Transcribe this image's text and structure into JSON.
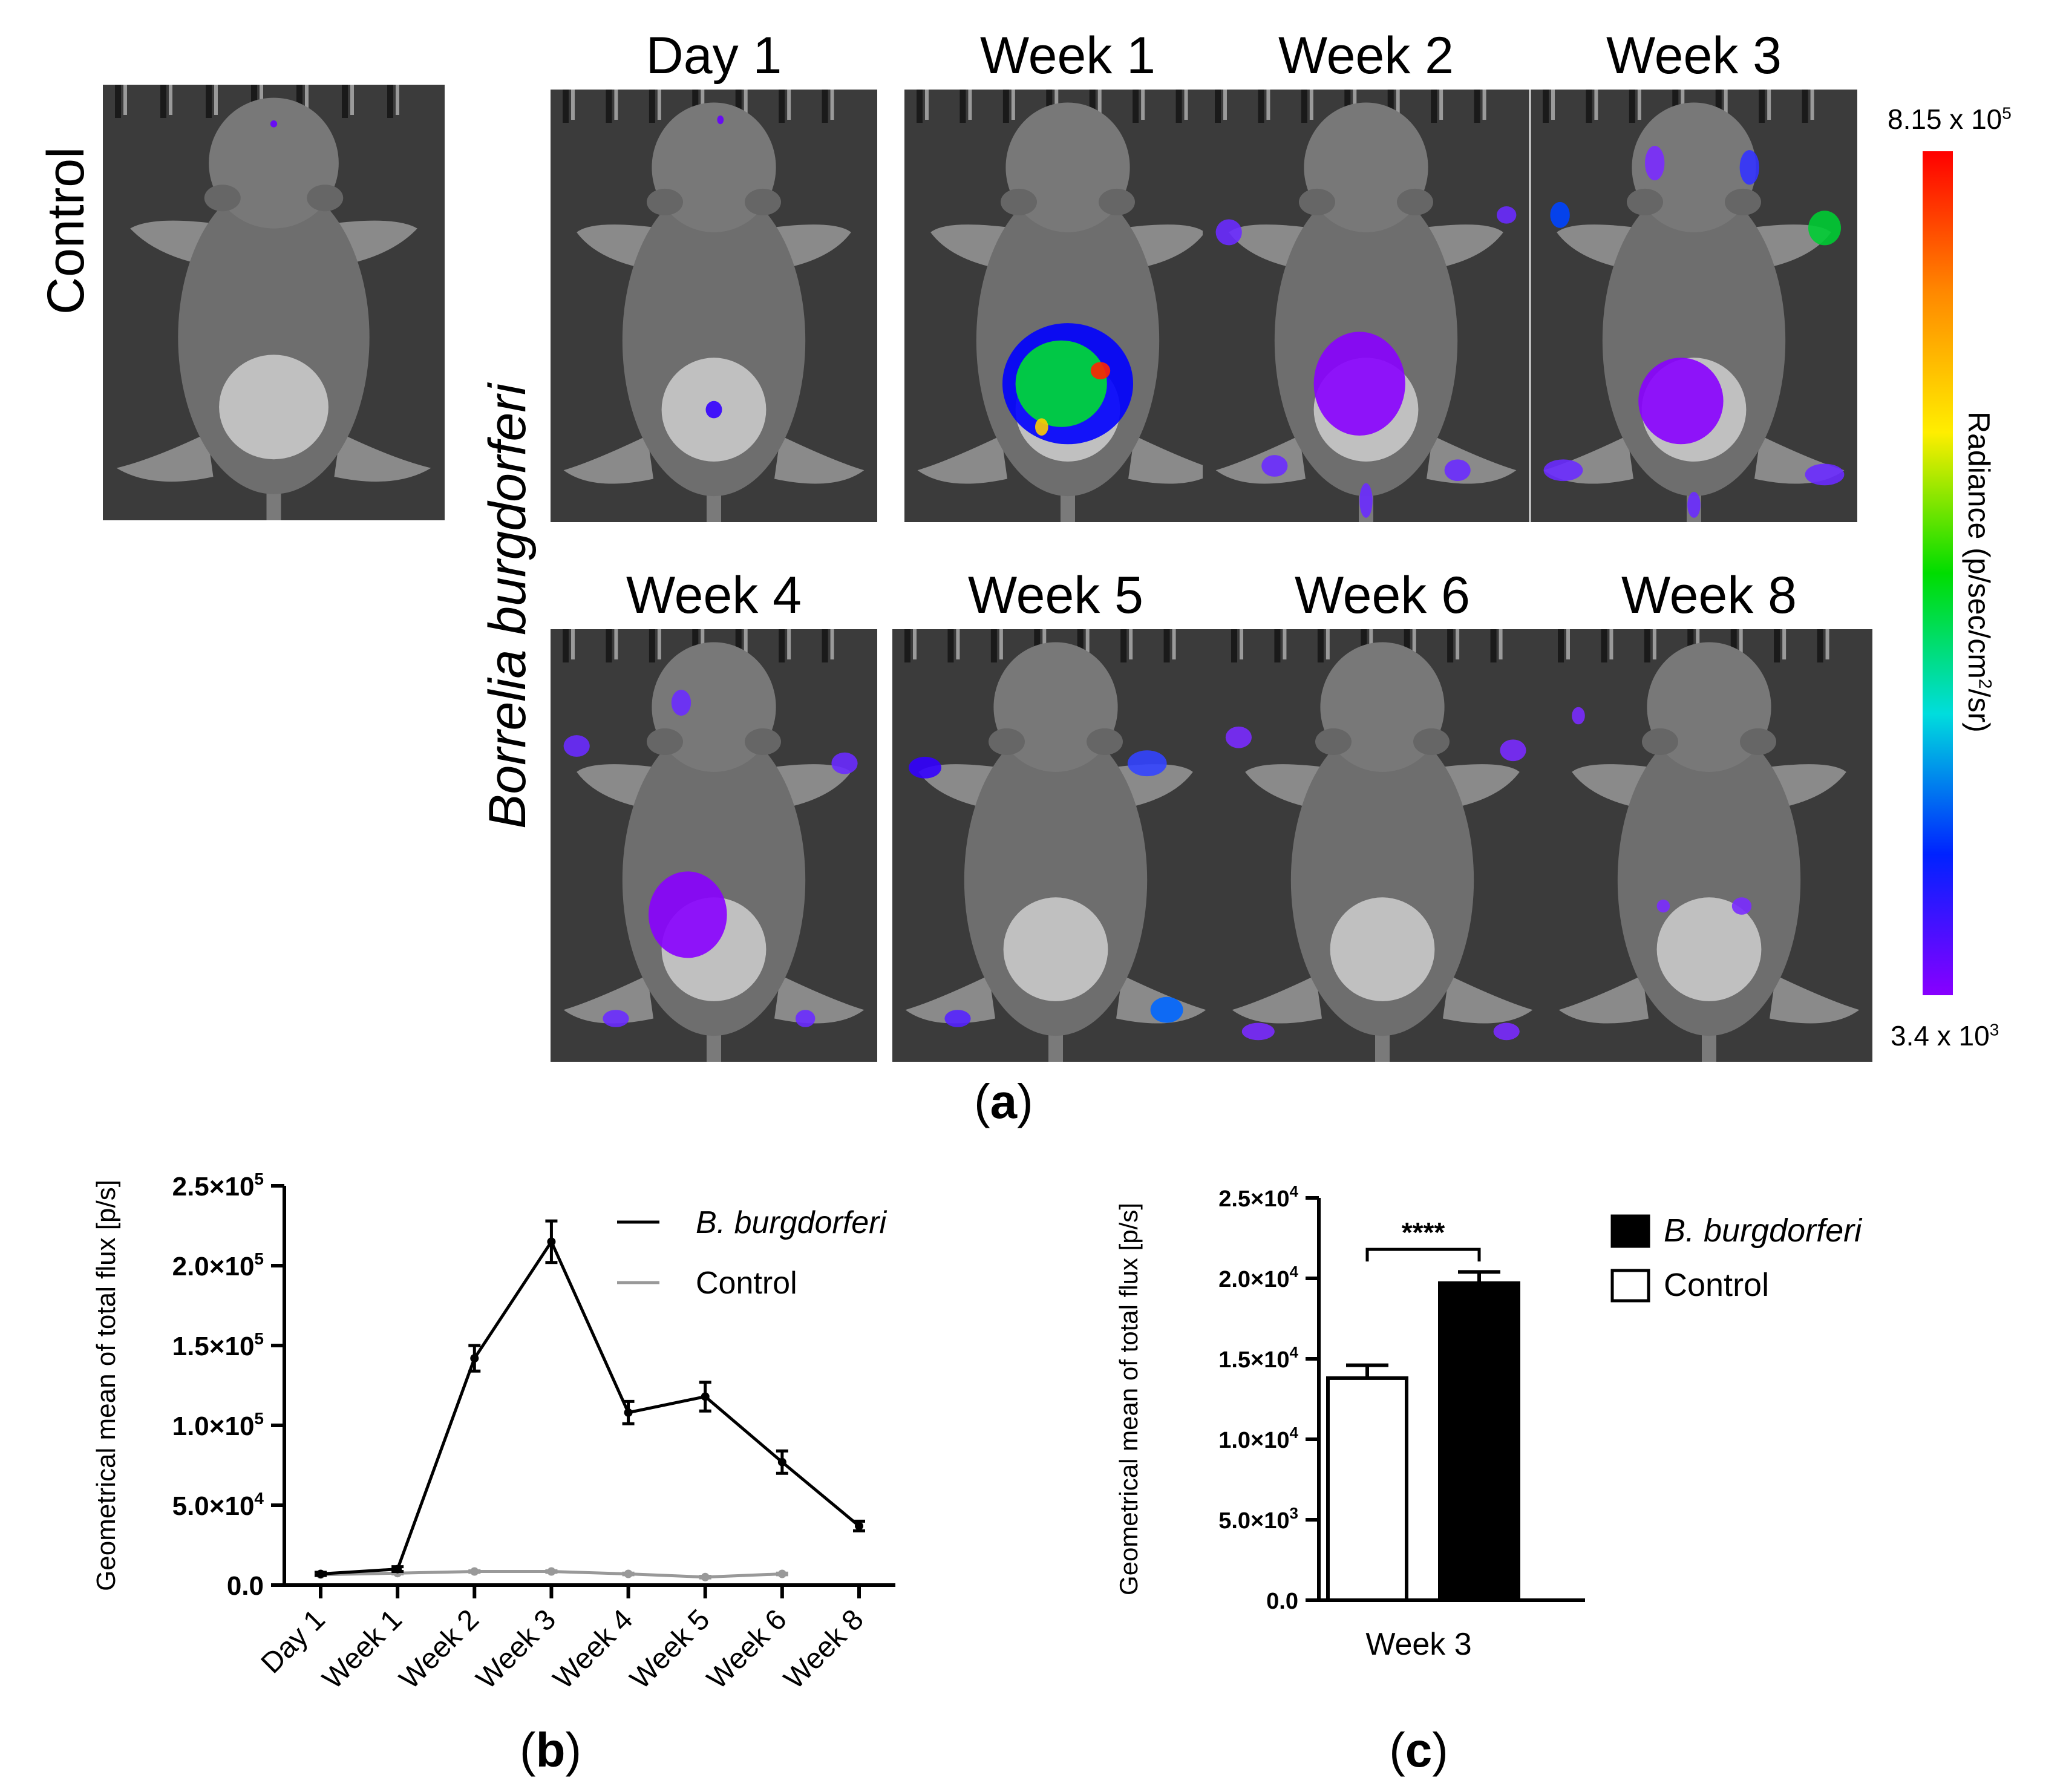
{
  "panel_a": {
    "control_label": "Control",
    "species_label": "Borrelia burgdorferi",
    "top_timepoints": [
      "Day 1",
      "Week 1",
      "Week 2",
      "Week 3"
    ],
    "bottom_timepoints": [
      "Week 4",
      "Week 5",
      "Week 6",
      "Week 8"
    ],
    "colorbar": {
      "max_label_base": "8.15 x 10",
      "max_label_exp": "5",
      "min_label_base": "3.4 x 10",
      "min_label_exp": "3",
      "axis_title_pre": "Radiance (p/sec/cm",
      "axis_title_sup": "2",
      "axis_title_post": "/sr)",
      "gradient": [
        "#ff0000",
        "#ff8800",
        "#ffee00",
        "#00dd00",
        "#00dddd",
        "#0022ff",
        "#8800ff"
      ]
    },
    "caption": "a"
  },
  "chart_data": [
    {
      "type": "line",
      "panel": "b",
      "caption": "b",
      "ylabel": "Geometrical mean of total flux [p/s]",
      "ylim": [
        0,
        250000
      ],
      "yticks": [
        {
          "value": 0,
          "base": "0.0",
          "exp": ""
        },
        {
          "value": 50000,
          "base": "5.0×10",
          "exp": "4"
        },
        {
          "value": 100000,
          "base": "1.0×10",
          "exp": "5"
        },
        {
          "value": 150000,
          "base": "1.5×10",
          "exp": "5"
        },
        {
          "value": 200000,
          "base": "2.0×10",
          "exp": "5"
        },
        {
          "value": 250000,
          "base": "2.5×10",
          "exp": "5"
        }
      ],
      "categories": [
        "Day 1",
        "Week 1",
        "Week 2",
        "Week 3",
        "Week 4",
        "Week 5",
        "Week 6",
        "Week 8"
      ],
      "series": [
        {
          "name": "B. burgdorferi",
          "color": "#000000",
          "values": [
            7000,
            10000,
            142000,
            215000,
            108000,
            118000,
            77000,
            37000
          ],
          "errors": [
            1000,
            1500,
            8000,
            13000,
            7000,
            9000,
            7000,
            3000
          ]
        },
        {
          "name": "Control",
          "color": "#999999",
          "values": [
            6500,
            7500,
            8500,
            8500,
            7000,
            5000,
            7000,
            null
          ],
          "errors": [
            500,
            500,
            500,
            500,
            500,
            500,
            500,
            null
          ]
        }
      ]
    },
    {
      "type": "bar",
      "panel": "c",
      "caption": "c",
      "ylabel": "Geometrical mean of total flux [p/s]",
      "xlabel": "Week 3",
      "ylim": [
        0,
        25000
      ],
      "yticks": [
        {
          "value": 0,
          "base": "0.0",
          "exp": ""
        },
        {
          "value": 5000,
          "base": "5.0×10",
          "exp": "3"
        },
        {
          "value": 10000,
          "base": "1.0×10",
          "exp": "4"
        },
        {
          "value": 15000,
          "base": "1.5×10",
          "exp": "4"
        },
        {
          "value": 20000,
          "base": "2.0×10",
          "exp": "4"
        },
        {
          "value": 25000,
          "base": "2.5×10",
          "exp": "4"
        }
      ],
      "series": [
        {
          "name": "Control",
          "value": 13800,
          "error": 800,
          "fill": "#ffffff"
        },
        {
          "name": "B. burgdorferi",
          "value": 19700,
          "error": 700,
          "fill": "#000000"
        }
      ],
      "significance": "****"
    }
  ]
}
